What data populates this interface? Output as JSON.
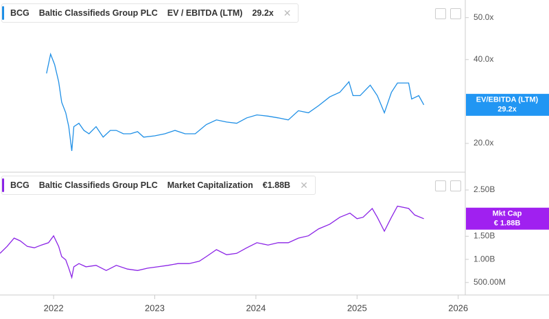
{
  "chart_data": [
    {
      "type": "line",
      "ticker": "BCG",
      "company": "Baltic Classifieds Group PLC",
      "title": "EV / EBITDA (LTM)",
      "current_value": "29.2x",
      "badge_label": "EV/EBITDA (LTM)",
      "badge_value": "29.2x",
      "color": "#1e8fe6",
      "badge_color": "#2196f3",
      "x": [
        2021.93,
        2021.97,
        2022.01,
        2022.05,
        2022.08,
        2022.12,
        2022.15,
        2022.18,
        2022.2,
        2022.25,
        2022.3,
        2022.35,
        2022.42,
        2022.49,
        2022.56,
        2022.62,
        2022.69,
        2022.76,
        2022.83,
        2022.89,
        2023.0,
        2023.1,
        2023.2,
        2023.3,
        2023.4,
        2023.51,
        2023.61,
        2023.71,
        2023.81,
        2023.91,
        2024.01,
        2024.12,
        2024.22,
        2024.32,
        2024.42,
        2024.52,
        2024.62,
        2024.73,
        2024.83,
        2024.92,
        2024.96,
        2025.03,
        2025.13,
        2025.2,
        2025.27,
        2025.34,
        2025.4,
        2025.51,
        2025.54,
        2025.61,
        2025.66
      ],
      "values": [
        36.7,
        41.3,
        38.8,
        34.7,
        29.8,
        27.3,
        24.0,
        18.2,
        24.0,
        24.8,
        23.1,
        22.3,
        24.0,
        21.5,
        23.1,
        23.1,
        22.3,
        22.3,
        22.8,
        21.5,
        21.8,
        22.3,
        23.1,
        22.3,
        22.3,
        24.5,
        25.6,
        25.1,
        24.8,
        26.1,
        26.8,
        26.5,
        26.1,
        25.6,
        27.8,
        27.3,
        29.0,
        31.1,
        32.2,
        34.7,
        31.4,
        31.4,
        33.9,
        31.4,
        27.3,
        32.2,
        34.4,
        34.4,
        30.6,
        31.4,
        29.2
      ],
      "xlim": [
        2021.47,
        2026.07
      ],
      "ylim": [
        13.3,
        54.2
      ],
      "yticks": [
        {
          "value": 50,
          "label": "50.0x"
        },
        {
          "value": 40,
          "label": "40.0x"
        },
        {
          "value": 20,
          "label": "20.0x"
        }
      ]
    },
    {
      "type": "line",
      "ticker": "BCG",
      "company": "Baltic Classifieds Group PLC",
      "title": "Market Capitalization",
      "current_value": "€1.88B",
      "badge_label": "Mkt Cap",
      "badge_value": "€ 1.88B",
      "color": "#8a22e6",
      "badge_color": "#a020f0",
      "x": [
        2021.47,
        2021.54,
        2021.61,
        2021.67,
        2021.74,
        2021.81,
        2021.88,
        2021.95,
        2022.0,
        2022.05,
        2022.08,
        2022.12,
        2022.15,
        2022.18,
        2022.2,
        2022.25,
        2022.32,
        2022.42,
        2022.52,
        2022.62,
        2022.73,
        2022.83,
        2022.93,
        2023.03,
        2023.13,
        2023.23,
        2023.34,
        2023.44,
        2023.51,
        2023.61,
        2023.71,
        2023.81,
        2023.91,
        2024.01,
        2024.12,
        2024.22,
        2024.32,
        2024.42,
        2024.52,
        2024.62,
        2024.73,
        2024.83,
        2024.93,
        2025.0,
        2025.06,
        2025.15,
        2025.2,
        2025.27,
        2025.34,
        2025.4,
        2025.51,
        2025.57,
        2025.66
      ],
      "values": [
        1.13,
        1.28,
        1.46,
        1.4,
        1.28,
        1.25,
        1.31,
        1.36,
        1.51,
        1.28,
        1.06,
        0.99,
        0.81,
        0.61,
        0.84,
        0.91,
        0.84,
        0.87,
        0.76,
        0.87,
        0.79,
        0.76,
        0.81,
        0.84,
        0.87,
        0.91,
        0.91,
        0.96,
        1.06,
        1.21,
        1.1,
        1.13,
        1.25,
        1.36,
        1.31,
        1.36,
        1.36,
        1.46,
        1.51,
        1.66,
        1.76,
        1.91,
        2.0,
        1.88,
        1.91,
        2.1,
        1.91,
        1.61,
        1.91,
        2.15,
        2.1,
        1.96,
        1.88
      ],
      "xlim": [
        2021.47,
        2026.07
      ],
      "ylim": [
        0.23,
        2.87
      ],
      "yticks": [
        {
          "value": 2.5,
          "label": "2.50B"
        },
        {
          "value": 1.5,
          "label": "1.50B"
        },
        {
          "value": 1.0,
          "label": "1.00B"
        },
        {
          "value": 0.5,
          "label": "500.00M"
        }
      ],
      "xticks": [
        2022,
        2023,
        2024,
        2025,
        2026
      ]
    }
  ]
}
